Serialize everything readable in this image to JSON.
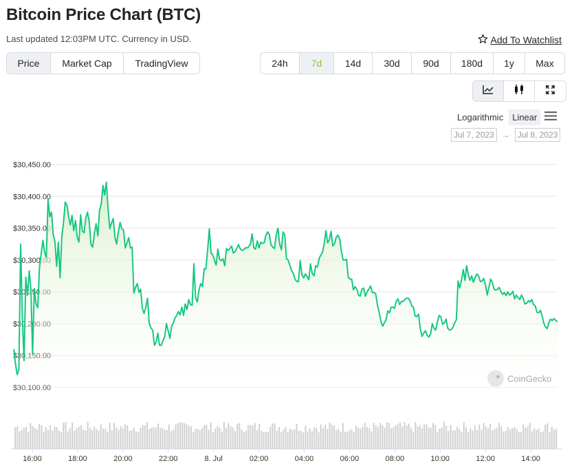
{
  "title": "Bitcoin Price Chart (BTC)",
  "updated": "Last updated 12:03PM UTC. Currency in USD.",
  "watchlist_label": "Add To Watchlist",
  "view_tabs": [
    {
      "label": "Price",
      "active": true
    },
    {
      "label": "Market Cap",
      "active": false
    },
    {
      "label": "TradingView",
      "active": false
    }
  ],
  "range_tabs": [
    {
      "label": "24h",
      "active": false
    },
    {
      "label": "7d",
      "active": true
    },
    {
      "label": "14d",
      "active": false
    },
    {
      "label": "30d",
      "active": false
    },
    {
      "label": "90d",
      "active": false
    },
    {
      "label": "180d",
      "active": false
    },
    {
      "label": "1y",
      "active": false
    },
    {
      "label": "Max",
      "active": false
    }
  ],
  "chart_toggles": [
    {
      "icon": "line-chart-icon",
      "active": true
    },
    {
      "icon": "candlestick-icon",
      "active": false
    },
    {
      "icon": "fullscreen-icon",
      "active": false
    }
  ],
  "scale": {
    "log_label": "Logarithmic",
    "linear_label": "Linear"
  },
  "dates": {
    "from": "Jul 7, 2023",
    "arrow": "→",
    "to": "Jul 8, 2023"
  },
  "brand": "CoinGecko",
  "colors": {
    "line": "#16c784",
    "fill_top": "#d7efc7",
    "accent_green": "#8dc647",
    "volume": "#c8c8c8"
  },
  "chart_data": {
    "type": "area",
    "series": [
      {
        "values": [
          30160,
          30137,
          30120,
          30128,
          30325,
          30210,
          30142,
          30273,
          30245,
          30283,
          30254,
          30152,
          30255,
          30231,
          30225,
          30288,
          30310,
          30331,
          30312,
          30304,
          30395,
          30368,
          30375,
          30340,
          30329,
          30290,
          30328,
          30272,
          30337,
          30359,
          30391,
          30386,
          30368,
          30355,
          30370,
          30346,
          30362,
          30336,
          30328,
          30371,
          30345,
          30343,
          30366,
          30375,
          30360,
          30325,
          30320,
          30342,
          30357,
          30338,
          30378,
          30388,
          30417,
          30402,
          30422,
          30380,
          30349,
          30358,
          30365,
          30336,
          30325,
          30344,
          30359,
          30349,
          30347,
          30319,
          30327,
          30335,
          30319,
          30320,
          30248,
          30257,
          30263,
          30249,
          30254,
          30224,
          30216,
          30226,
          30240,
          30201,
          30193,
          30190,
          30166,
          30171,
          30185,
          30166,
          30166,
          30173,
          30180,
          30200,
          30189,
          30177,
          30196,
          30201,
          30209,
          30213,
          30219,
          30214,
          30226,
          30213,
          30231,
          30222,
          30238,
          30230,
          30229,
          30294,
          30241,
          30234,
          30253,
          30263,
          30258,
          30286,
          30286,
          30315,
          30349,
          30311,
          30308,
          30300,
          30292,
          30317,
          30301,
          30299,
          30302,
          30291,
          30318,
          30315,
          30318,
          30322,
          30311,
          30313,
          30318,
          30324,
          30318,
          30315,
          30316,
          30319,
          30319,
          30321,
          30325,
          30341,
          30319,
          30317,
          30330,
          30319,
          30328,
          30326,
          30327,
          30339,
          30344,
          30340,
          30324,
          30320,
          30318,
          30339,
          30350,
          30325,
          30316,
          30344,
          30339,
          30302,
          30300,
          30292,
          30283,
          30279,
          30270,
          30266,
          30266,
          30299,
          30277,
          30272,
          30278,
          30274,
          30269,
          30294,
          30279,
          30275,
          30291,
          30289,
          30302,
          30308,
          30312,
          30325,
          30346,
          30327,
          30332,
          30345,
          30322,
          30325,
          30336,
          30339,
          30333,
          30314,
          30300,
          30300,
          30301,
          30273,
          30270,
          30270,
          30253,
          30258,
          30254,
          30245,
          30243,
          30254,
          30256,
          30243,
          30250,
          30254,
          30259,
          30249,
          30249,
          30247,
          30230,
          30218,
          30204,
          30196,
          30201,
          30206,
          30220,
          30217,
          30226,
          30226,
          30224,
          30235,
          30239,
          30230,
          30235,
          30235,
          30238,
          30240,
          30240,
          30236,
          30228,
          30226,
          30212,
          30211,
          30215,
          30192,
          30180,
          30185,
          30189,
          30182,
          30179,
          30184,
          30200,
          30193,
          30190,
          30203,
          30213,
          30211,
          30199,
          30201,
          30207,
          30193,
          30190,
          30191,
          30194,
          30201,
          30206,
          30267,
          30256,
          30269,
          30285,
          30268,
          30291,
          30277,
          30268,
          30275,
          30265,
          30273,
          30278,
          30275,
          30266,
          30267,
          30271,
          30261,
          30245,
          30257,
          30270,
          30265,
          30254,
          30253,
          30254,
          30257,
          30250,
          30246,
          30249,
          30244,
          30250,
          30245,
          30247,
          30251,
          30239,
          30245,
          30241,
          30238,
          30245,
          30240,
          30231,
          30232,
          30236,
          30234,
          30238,
          30230,
          30228,
          30218,
          30217,
          30221,
          30213,
          30201,
          30195,
          30192,
          30202,
          30207,
          30205,
          30208,
          30205,
          30203
        ]
      }
    ],
    "ylim": [
      30100,
      30450
    ],
    "y_ticks": [
      "$30,450.00",
      "$30,400.00",
      "$30,350.00",
      "$30,300.00",
      "$30,250.00",
      "$30,200.00",
      "$30,150.00",
      "$30,100.00"
    ],
    "y_tick_values": [
      30450,
      30400,
      30350,
      30300,
      30250,
      30200,
      30150,
      30100
    ],
    "x_ticks": [
      "16:00",
      "18:00",
      "20:00",
      "22:00",
      "8. Jul",
      "02:00",
      "04:00",
      "06:00",
      "08:00",
      "10:00",
      "12:00",
      "14:00"
    ],
    "x_tick_hours": [
      0.82,
      2.82,
      4.82,
      6.82,
      8.82,
      10.82,
      12.82,
      14.82,
      16.82,
      18.82,
      20.82,
      22.82
    ],
    "x_span_hours": 24.0,
    "grid": true,
    "volume_shown": true
  }
}
